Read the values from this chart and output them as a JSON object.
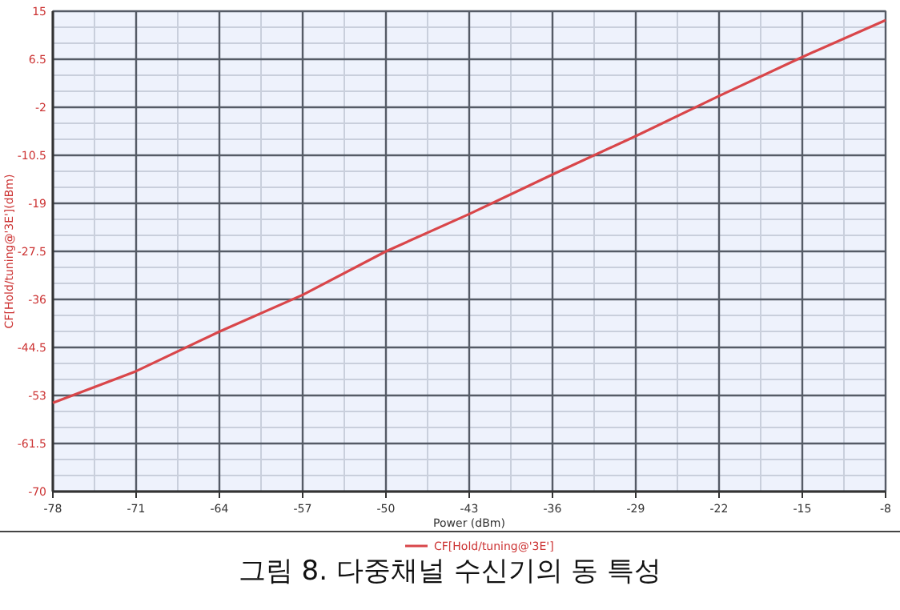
{
  "chart_data": {
    "type": "line",
    "xlabel": "Power (dBm)",
    "ylabel": "CF[Hold/tuning@'3E'](dBm)",
    "annotations": [
      "그림 8. 다중채널 수신기의 동 특성"
    ],
    "x": [
      -78,
      -71,
      -64,
      -57,
      -50,
      -43,
      -36,
      -29,
      -22,
      -15,
      -8
    ],
    "series": [
      {
        "name": "CF[Hold/tuning@'3E']",
        "color": "#d9464a",
        "values": [
          -54.3,
          -48.7,
          -41.7,
          -35.2,
          -27.5,
          -20.9,
          -13.9,
          -7.1,
          0.0,
          6.9,
          13.4
        ]
      }
    ],
    "xlim": [
      -78,
      -8
    ],
    "xticks": [
      -78,
      -71,
      -64,
      -57,
      -50,
      -43,
      -36,
      -29,
      -22,
      -15,
      -8
    ],
    "ylim": [
      -70,
      15
    ],
    "yticks": [
      15,
      6.5,
      -2,
      -10.5,
      -19,
      -27.5,
      -36,
      -44.5,
      -53,
      -61.5,
      -70
    ],
    "grid": true,
    "legend": "bottom",
    "marker": "none",
    "line_style": "solid"
  }
}
